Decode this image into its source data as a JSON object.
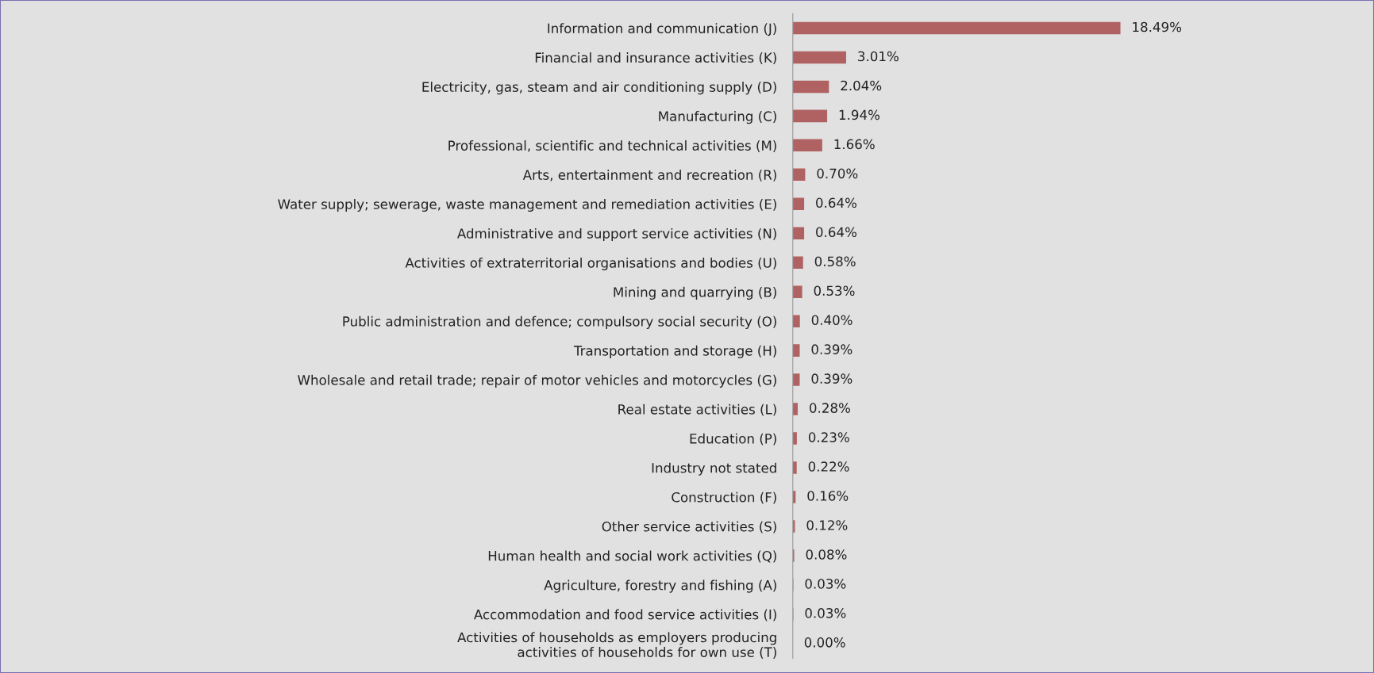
{
  "chart_data": {
    "type": "bar",
    "orientation": "horizontal",
    "categories": [
      "Information and communication (J)",
      "Financial and insurance activities (K)",
      "Electricity, gas, steam and air conditioning supply (D)",
      "Manufacturing (C)",
      "Professional, scientific and technical activities (M)",
      "Arts, entertainment and recreation (R)",
      "Water supply; sewerage, waste management and remediation activities (E)",
      "Administrative and support service activities (N)",
      "Activities of extraterritorial organisations and bodies (U)",
      "Mining and quarrying (B)",
      "Public administration and defence; compulsory social security (O)",
      "Transportation and storage (H)",
      "Wholesale and retail trade; repair of motor vehicles and motorcycles (G)",
      "Real estate activities (L)",
      "Education (P)",
      "Industry not stated",
      "Construction (F)",
      "Other service activities (S)",
      "Human health and social work activities (Q)",
      "Agriculture, forestry and fishing (A)",
      "Accommodation and food service activities (I)",
      "Activities of households as employers producing\nactivities of households for own use (T)"
    ],
    "values": [
      18.49,
      3.01,
      2.04,
      1.94,
      1.66,
      0.7,
      0.64,
      0.64,
      0.58,
      0.53,
      0.4,
      0.39,
      0.39,
      0.28,
      0.23,
      0.22,
      0.16,
      0.12,
      0.08,
      0.03,
      0.03,
      0.0
    ],
    "value_labels": [
      "18.49%",
      "3.01%",
      "2.04%",
      "1.94%",
      "1.66%",
      "0.70%",
      "0.64%",
      "0.64%",
      "0.58%",
      "0.53%",
      "0.40%",
      "0.39%",
      "0.39%",
      "0.28%",
      "0.23%",
      "0.22%",
      "0.16%",
      "0.12%",
      "0.08%",
      "0.03%",
      "0.03%",
      "0.00%"
    ],
    "color": "#b06262",
    "tick_labels": "y"
  }
}
